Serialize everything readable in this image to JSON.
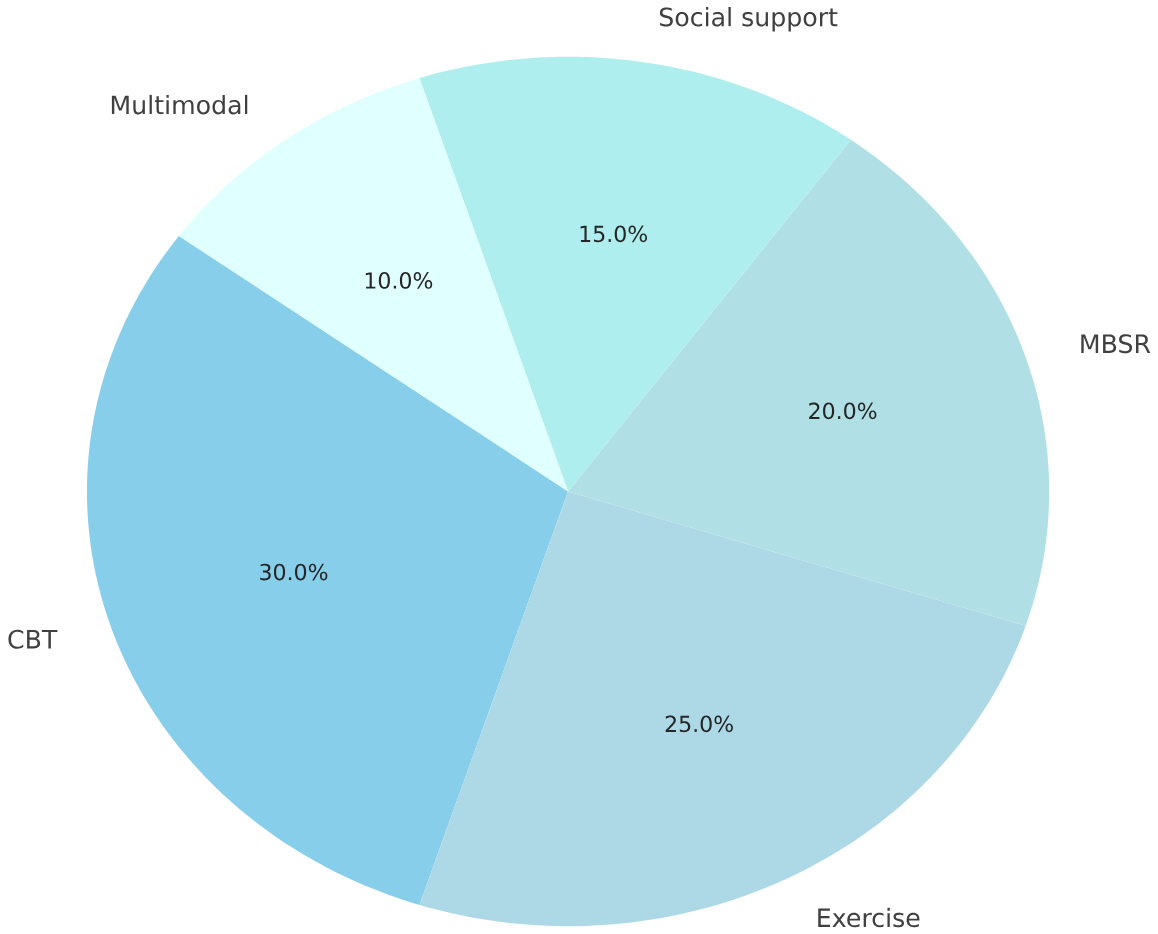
{
  "chart_data": {
    "type": "pie",
    "categories": [
      "CBT",
      "Exercise",
      "MBSR",
      "Social support",
      "Multimodal"
    ],
    "values": [
      30,
      25,
      20,
      15,
      10
    ],
    "colors": [
      "#87ceeb",
      "#add8e6",
      "#b0e0e6",
      "#afeeee",
      "#e0ffff"
    ],
    "value_labels": [
      "30.0%",
      "25.0%",
      "20.0%",
      "15.0%",
      "10.0%"
    ]
  }
}
